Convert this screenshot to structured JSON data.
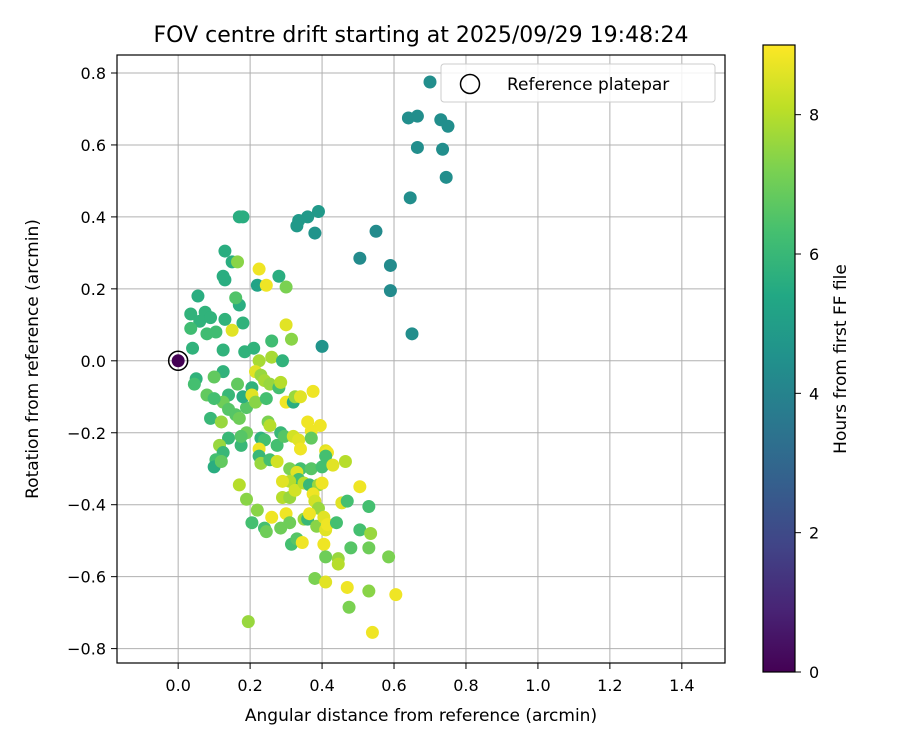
{
  "chart_data": {
    "type": "scatter",
    "title": "FOV centre drift starting at 2025/09/29 19:48:24",
    "xlabel": "Angular distance from reference (arcmin)",
    "ylabel": "Rotation from reference (arcmin)",
    "xlim": [
      -0.17,
      1.52
    ],
    "ylim": [
      -0.84,
      0.85
    ],
    "xticks": [
      0.0,
      0.2,
      0.4,
      0.6,
      0.8,
      1.0,
      1.2,
      1.4
    ],
    "xtick_labels": [
      "0.0",
      "0.2",
      "0.4",
      "0.6",
      "0.8",
      "1.0",
      "1.2",
      "1.4"
    ],
    "yticks": [
      -0.8,
      -0.6,
      -0.4,
      -0.2,
      0.0,
      0.2,
      0.4,
      0.6,
      0.8
    ],
    "ytick_labels": [
      "−0.8",
      "−0.6",
      "−0.4",
      "−0.2",
      "0.0",
      "0.2",
      "0.4",
      "0.6",
      "0.8"
    ],
    "grid": true,
    "legend": {
      "position": "top-right",
      "entries": [
        "Reference platepar"
      ]
    },
    "colorbar": {
      "label": "Hours from first FF file",
      "range": [
        0,
        9
      ],
      "ticks": [
        0,
        2,
        4,
        6,
        8
      ],
      "tick_labels": [
        "0",
        "2",
        "4",
        "6",
        "8"
      ],
      "colormap": "viridis"
    },
    "reference_point": {
      "x": 0.0,
      "y": 0.0,
      "hours": 0.0
    },
    "points": [
      [
        0.7,
        0.775,
        4.4
      ],
      [
        0.64,
        0.675,
        4.4
      ],
      [
        0.665,
        0.68,
        4.4
      ],
      [
        0.73,
        0.67,
        4.4
      ],
      [
        0.75,
        0.652,
        4.4
      ],
      [
        0.665,
        0.593,
        4.4
      ],
      [
        0.735,
        0.588,
        4.4
      ],
      [
        0.745,
        0.51,
        4.4
      ],
      [
        0.645,
        0.453,
        4.4
      ],
      [
        0.65,
        0.075,
        4.4
      ],
      [
        0.55,
        0.36,
        4.3
      ],
      [
        0.505,
        0.285,
        4.3
      ],
      [
        0.59,
        0.265,
        4.3
      ],
      [
        0.59,
        0.195,
        4.3
      ],
      [
        0.4,
        0.04,
        4.6
      ],
      [
        0.39,
        0.415,
        4.8
      ],
      [
        0.36,
        0.4,
        4.8
      ],
      [
        0.335,
        0.39,
        4.8
      ],
      [
        0.33,
        0.375,
        4.8
      ],
      [
        0.38,
        0.355,
        4.6
      ],
      [
        0.17,
        0.4,
        5.6
      ],
      [
        0.18,
        0.4,
        5.6
      ],
      [
        0.13,
        0.305,
        5.6
      ],
      [
        0.15,
        0.275,
        5.6
      ],
      [
        0.125,
        0.235,
        5.6
      ],
      [
        0.13,
        0.225,
        5.6
      ],
      [
        0.17,
        0.155,
        5.6
      ],
      [
        0.16,
        0.175,
        6.5
      ],
      [
        0.165,
        0.275,
        7.4
      ],
      [
        0.055,
        0.18,
        5.6
      ],
      [
        0.035,
        0.13,
        5.8
      ],
      [
        0.075,
        0.135,
        5.8
      ],
      [
        0.06,
        0.11,
        5.8
      ],
      [
        0.09,
        0.12,
        5.8
      ],
      [
        0.13,
        0.115,
        5.8
      ],
      [
        0.18,
        0.105,
        5.8
      ],
      [
        0.035,
        0.09,
        6.2
      ],
      [
        0.08,
        0.075,
        6.2
      ],
      [
        0.105,
        0.08,
        6.2
      ],
      [
        0.15,
        0.085,
        8.6
      ],
      [
        0.04,
        0.035,
        5.8
      ],
      [
        0.125,
        0.03,
        5.8
      ],
      [
        0.22,
        0.21,
        5.2
      ],
      [
        0.28,
        0.235,
        5.6
      ],
      [
        0.245,
        0.21,
        8.8
      ],
      [
        0.225,
        0.255,
        8.8
      ],
      [
        0.3,
        0.205,
        7.2
      ],
      [
        0.26,
        0.055,
        6.2
      ],
      [
        0.3,
        0.1,
        8.6
      ],
      [
        0.315,
        0.06,
        7.4
      ],
      [
        0.185,
        0.025,
        5.8
      ],
      [
        0.21,
        0.035,
        5.8
      ],
      [
        0.225,
        0.0,
        7.8
      ],
      [
        0.26,
        0.01,
        7.8
      ],
      [
        0.29,
        0.0,
        5.8
      ],
      [
        0.05,
        -0.05,
        5.8
      ],
      [
        0.045,
        -0.065,
        6.3
      ],
      [
        0.125,
        -0.03,
        5.8
      ],
      [
        0.1,
        -0.045,
        6.8
      ],
      [
        0.08,
        -0.095,
        6.8
      ],
      [
        0.14,
        -0.095,
        6.0
      ],
      [
        0.165,
        -0.065,
        6.8
      ],
      [
        0.125,
        -0.115,
        7.0
      ],
      [
        0.14,
        -0.135,
        6.6
      ],
      [
        0.1,
        -0.105,
        6.3
      ],
      [
        0.09,
        -0.16,
        6.0
      ],
      [
        0.12,
        -0.17,
        7.6
      ],
      [
        0.16,
        -0.15,
        6.6
      ],
      [
        0.17,
        -0.16,
        7.0
      ],
      [
        0.19,
        -0.13,
        6.6
      ],
      [
        0.18,
        -0.1,
        5.6
      ],
      [
        0.205,
        -0.075,
        5.8
      ],
      [
        0.215,
        -0.03,
        8.6
      ],
      [
        0.23,
        -0.04,
        7.6
      ],
      [
        0.24,
        -0.055,
        7.8
      ],
      [
        0.205,
        -0.095,
        8.6
      ],
      [
        0.215,
        -0.115,
        7.4
      ],
      [
        0.245,
        -0.105,
        6.3
      ],
      [
        0.255,
        -0.065,
        7.6
      ],
      [
        0.28,
        -0.075,
        6.3
      ],
      [
        0.285,
        -0.06,
        8.0
      ],
      [
        0.3,
        -0.115,
        8.8
      ],
      [
        0.32,
        -0.115,
        5.6
      ],
      [
        0.325,
        -0.1,
        7.6
      ],
      [
        0.34,
        -0.1,
        8.6
      ],
      [
        0.375,
        -0.085,
        8.8
      ],
      [
        0.14,
        -0.215,
        6.0
      ],
      [
        0.175,
        -0.235,
        6.0
      ],
      [
        0.19,
        -0.2,
        7.0
      ],
      [
        0.175,
        -0.21,
        6.6
      ],
      [
        0.115,
        -0.235,
        7.6
      ],
      [
        0.125,
        -0.255,
        6.0
      ],
      [
        0.105,
        -0.275,
        6.3
      ],
      [
        0.1,
        -0.295,
        5.6
      ],
      [
        0.12,
        -0.28,
        6.8
      ],
      [
        0.23,
        -0.215,
        5.8
      ],
      [
        0.24,
        -0.22,
        6.3
      ],
      [
        0.25,
        -0.17,
        7.2
      ],
      [
        0.255,
        -0.18,
        8.0
      ],
      [
        0.275,
        -0.235,
        6.3
      ],
      [
        0.225,
        -0.245,
        8.8
      ],
      [
        0.225,
        -0.265,
        6.0
      ],
      [
        0.23,
        -0.285,
        7.6
      ],
      [
        0.255,
        -0.275,
        6.3
      ],
      [
        0.275,
        -0.28,
        8.4
      ],
      [
        0.285,
        -0.2,
        6.0
      ],
      [
        0.295,
        -0.21,
        6.6
      ],
      [
        0.32,
        -0.21,
        8.4
      ],
      [
        0.335,
        -0.22,
        8.6
      ],
      [
        0.34,
        -0.245,
        8.8
      ],
      [
        0.36,
        -0.17,
        8.8
      ],
      [
        0.37,
        -0.195,
        8.8
      ],
      [
        0.37,
        -0.215,
        6.8
      ],
      [
        0.395,
        -0.18,
        8.8
      ],
      [
        0.41,
        -0.25,
        8.6
      ],
      [
        0.415,
        -0.255,
        8.8
      ],
      [
        0.41,
        -0.265,
        6.3
      ],
      [
        0.34,
        -0.3,
        6.3
      ],
      [
        0.31,
        -0.3,
        7.2
      ],
      [
        0.33,
        -0.31,
        8.6
      ],
      [
        0.335,
        -0.33,
        6.3
      ],
      [
        0.31,
        -0.335,
        8.0
      ],
      [
        0.29,
        -0.335,
        8.6
      ],
      [
        0.29,
        -0.38,
        8.0
      ],
      [
        0.31,
        -0.38,
        7.6
      ],
      [
        0.325,
        -0.36,
        8.4
      ],
      [
        0.35,
        -0.34,
        8.0
      ],
      [
        0.365,
        -0.345,
        6.0
      ],
      [
        0.37,
        -0.3,
        6.6
      ],
      [
        0.39,
        -0.345,
        7.6
      ],
      [
        0.4,
        -0.34,
        8.8
      ],
      [
        0.375,
        -0.37,
        8.8
      ],
      [
        0.38,
        -0.39,
        8.4
      ],
      [
        0.39,
        -0.41,
        7.6
      ],
      [
        0.4,
        -0.295,
        6.3
      ],
      [
        0.43,
        -0.29,
        8.6
      ],
      [
        0.465,
        -0.28,
        8.0
      ],
      [
        0.455,
        -0.395,
        8.6
      ],
      [
        0.47,
        -0.39,
        6.3
      ],
      [
        0.505,
        -0.35,
        8.8
      ],
      [
        0.53,
        -0.405,
        6.3
      ],
      [
        0.17,
        -0.345,
        8.0
      ],
      [
        0.19,
        -0.385,
        7.4
      ],
      [
        0.205,
        -0.45,
        6.3
      ],
      [
        0.22,
        -0.415,
        7.4
      ],
      [
        0.24,
        -0.465,
        6.3
      ],
      [
        0.245,
        -0.475,
        7.0
      ],
      [
        0.26,
        -0.435,
        8.8
      ],
      [
        0.285,
        -0.465,
        7.0
      ],
      [
        0.3,
        -0.425,
        8.8
      ],
      [
        0.31,
        -0.45,
        7.0
      ],
      [
        0.315,
        -0.51,
        6.3
      ],
      [
        0.33,
        -0.495,
        6.6
      ],
      [
        0.345,
        -0.505,
        8.8
      ],
      [
        0.35,
        -0.44,
        7.6
      ],
      [
        0.36,
        -0.44,
        6.0
      ],
      [
        0.365,
        -0.425,
        8.8
      ],
      [
        0.385,
        -0.46,
        7.4
      ],
      [
        0.405,
        -0.435,
        8.6
      ],
      [
        0.41,
        -0.47,
        8.6
      ],
      [
        0.415,
        -0.455,
        8.8
      ],
      [
        0.44,
        -0.45,
        6.3
      ],
      [
        0.405,
        -0.51,
        8.8
      ],
      [
        0.41,
        -0.545,
        7.0
      ],
      [
        0.445,
        -0.55,
        7.6
      ],
      [
        0.445,
        -0.565,
        8.0
      ],
      [
        0.48,
        -0.52,
        6.6
      ],
      [
        0.505,
        -0.47,
        6.3
      ],
      [
        0.535,
        -0.48,
        7.6
      ],
      [
        0.53,
        -0.52,
        7.0
      ],
      [
        0.585,
        -0.545,
        7.2
      ],
      [
        0.38,
        -0.605,
        7.2
      ],
      [
        0.41,
        -0.615,
        8.6
      ],
      [
        0.47,
        -0.63,
        8.8
      ],
      [
        0.475,
        -0.685,
        7.2
      ],
      [
        0.53,
        -0.64,
        7.4
      ],
      [
        0.605,
        -0.65,
        8.8
      ],
      [
        0.54,
        -0.755,
        8.8
      ],
      [
        0.195,
        -0.725,
        7.6
      ]
    ]
  }
}
